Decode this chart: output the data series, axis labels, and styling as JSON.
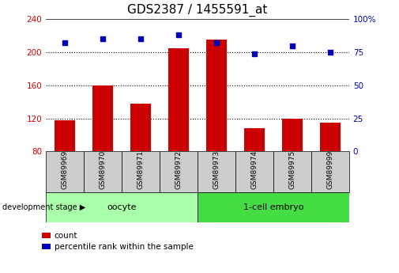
{
  "title": "GDS2387 / 1455591_at",
  "samples": [
    "GSM89969",
    "GSM89970",
    "GSM89971",
    "GSM89972",
    "GSM89973",
    "GSM89974",
    "GSM89975",
    "GSM89999"
  ],
  "counts": [
    118,
    160,
    138,
    205,
    215,
    108,
    120,
    115
  ],
  "percentile_ranks": [
    82,
    85,
    85,
    88,
    82,
    74,
    80,
    75
  ],
  "group_oocyte_indices": [
    0,
    1,
    2,
    3
  ],
  "group_embryo_indices": [
    4,
    5,
    6,
    7
  ],
  "group_oocyte_label": "oocyte",
  "group_embryo_label": "1-cell embryo",
  "group_oocyte_color": "#AAFFAA",
  "group_embryo_color": "#44DD44",
  "group_label_text": "development stage",
  "left_ylim": [
    80,
    240
  ],
  "right_ylim": [
    0,
    100
  ],
  "left_yticks": [
    80,
    120,
    160,
    200,
    240
  ],
  "right_yticks": [
    0,
    25,
    50,
    75,
    100
  ],
  "bar_color": "#CC0000",
  "dot_color": "#0000BB",
  "bar_width": 0.55,
  "title_fontsize": 11,
  "left_tick_color": "#CC0000",
  "right_tick_color": "#0000BB",
  "gridline_ticks": [
    120,
    160,
    200
  ],
  "label_box_color": "#CCCCCC",
  "legend_count_label": "count",
  "legend_pct_label": "percentile rank within the sample"
}
